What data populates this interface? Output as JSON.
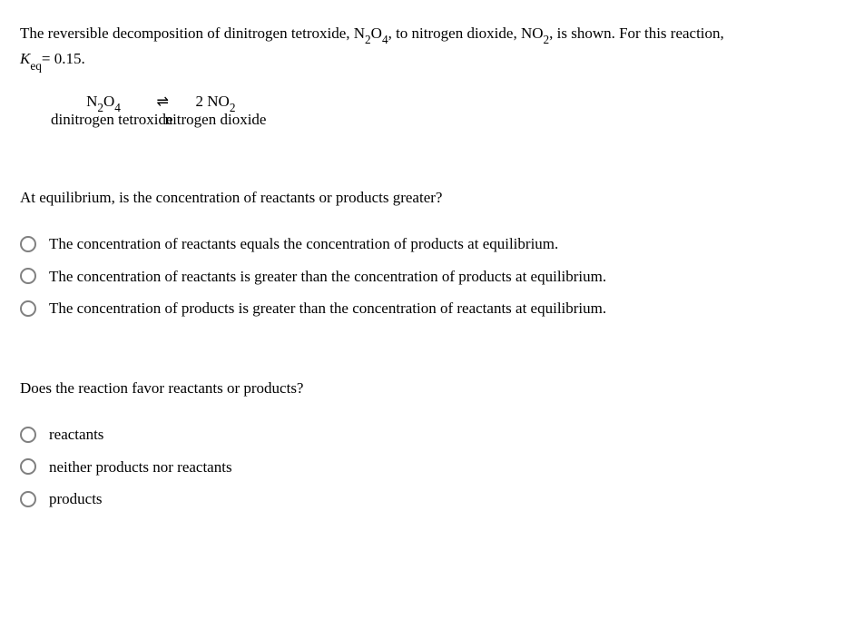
{
  "intro": {
    "part1": "The reversible decomposition of dinitrogen tetroxide, N",
    "sub1": "2",
    "part2": "O",
    "sub2": "4",
    "part3": ", to nitrogen dioxide, NO",
    "sub3": "2",
    "part4": ", is shown. For this reaction,",
    "keq_italic": "K",
    "keq_sub": "eq",
    "keq_rest": "= 0.15."
  },
  "equation": {
    "reactant_pre": "N",
    "reactant_sub1": "2",
    "reactant_mid": "O",
    "reactant_sub2": "4",
    "arrow": "⇌",
    "product_coef": "2 NO",
    "product_sub": "2",
    "label_left": "dinitrogen tetroxide",
    "label_right": "nitrogen dioxide"
  },
  "q1": {
    "text": "At equilibrium, is the concentration of reactants or products greater?",
    "options": [
      "The concentration of reactants equals the concentration of products at equilibrium.",
      "The concentration of reactants is greater than the concentration of products at equilibrium.",
      "The concentration of products is greater than the concentration of reactants at equilibrium."
    ]
  },
  "q2": {
    "text": "Does the reaction favor reactants or products?",
    "options": [
      "reactants",
      "neither products nor reactants",
      "products"
    ]
  }
}
